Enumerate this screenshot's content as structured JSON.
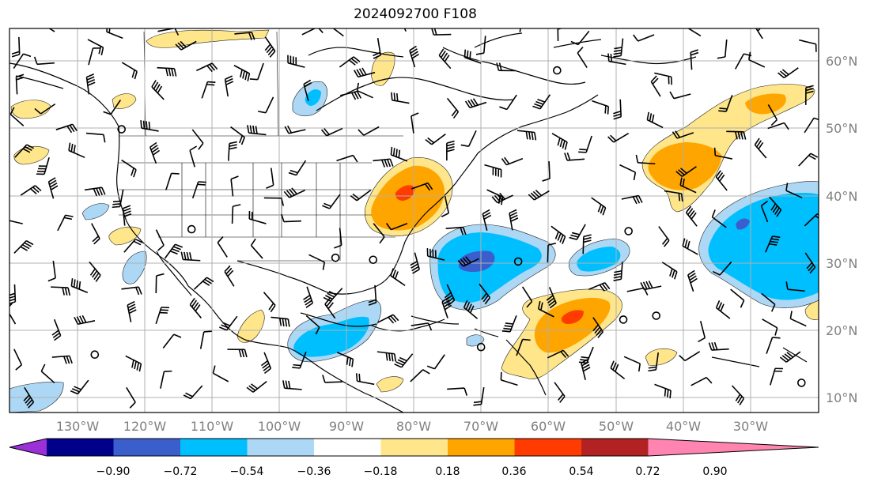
{
  "title": "2024092700 F108",
  "lon_labels": [
    "130°W",
    "120°W",
    "110°W",
    "100°W",
    "90°W",
    "80°W",
    "70°W",
    "60°W",
    "50°W",
    "40°W",
    "30°W"
  ],
  "lat_labels": [
    "60°N",
    "50°N",
    "40°N",
    "30°N",
    "20°N",
    "10°N"
  ],
  "colorbar": {
    "ticks": [
      "−0.90",
      "−0.72",
      "−0.54",
      "−0.36",
      "−0.18",
      "0.18",
      "0.36",
      "0.54",
      "0.72",
      "0.90"
    ],
    "colors": [
      "#9b30d9",
      "#00008b",
      "#3a5fcd",
      "#00bfff",
      "#add8f5",
      "#ffffff",
      "#ffe68a",
      "#ffa500",
      "#ff3b00",
      "#b22222",
      "#ff85b0"
    ]
  },
  "colors": {
    "light_blue": "#add8f5",
    "blue": "#00bfff",
    "mid_blue": "#3a5fcd",
    "purple": "#9b30d9",
    "yellow": "#ffe68a",
    "orange": "#ffa500",
    "red_orange": "#ff3b00",
    "grid": "#b0b0b0",
    "axis_label": "#808080"
  }
}
